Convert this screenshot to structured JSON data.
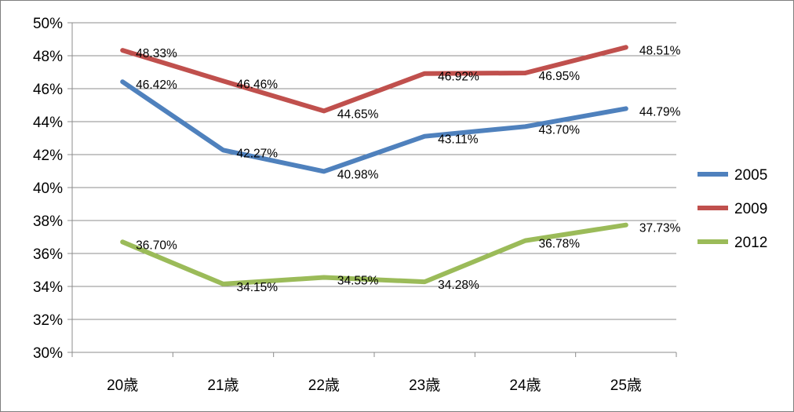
{
  "chart_data": {
    "type": "line",
    "categories": [
      "20歳",
      "21歳",
      "22歳",
      "23歳",
      "24歳",
      "25歳"
    ],
    "series": [
      {
        "name": "2005",
        "color": "#4F81BD",
        "values": [
          46.42,
          42.27,
          40.98,
          43.11,
          43.7,
          44.79
        ],
        "labels": [
          "46.42%",
          "42.27%",
          "40.98%",
          "43.11%",
          "43.70%",
          "44.79%"
        ]
      },
      {
        "name": "2009",
        "color": "#C0504D",
        "values": [
          48.33,
          46.46,
          44.65,
          46.92,
          46.95,
          48.51
        ],
        "labels": [
          "48.33%",
          "46.46%",
          "44.65%",
          "46.92%",
          "46.95%",
          "48.51%"
        ]
      },
      {
        "name": "2012",
        "color": "#9BBB59",
        "values": [
          36.7,
          34.15,
          34.55,
          34.28,
          36.78,
          37.73
        ],
        "labels": [
          "36.70%",
          "34.15%",
          "34.55%",
          "34.28%",
          "36.78%",
          "37.73%"
        ]
      }
    ],
    "ylim": [
      30,
      50
    ],
    "y_ticks": [
      "30%",
      "32%",
      "34%",
      "36%",
      "38%",
      "40%",
      "42%",
      "44%",
      "46%",
      "48%",
      "50%"
    ],
    "y_tick_values": [
      30,
      32,
      34,
      36,
      38,
      40,
      42,
      44,
      46,
      48,
      50
    ],
    "grid": true,
    "legend_position": "right",
    "title": "",
    "xlabel": "",
    "ylabel": ""
  }
}
